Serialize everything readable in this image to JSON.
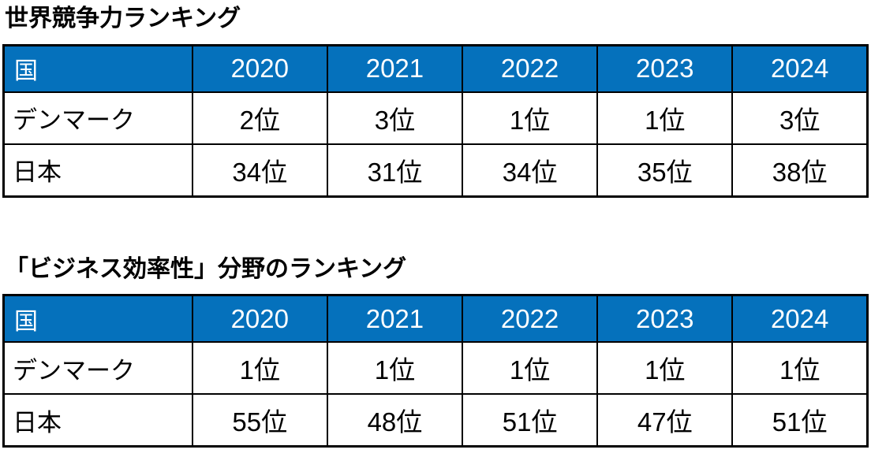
{
  "colors": {
    "header_background": "#0571BC",
    "header_text": "#FFFFFF",
    "border": "#000000",
    "body_text": "#000000",
    "page_background": "#FFFFFF"
  },
  "chart_data": [
    {
      "type": "table",
      "title": "世界競争力ランキング",
      "columns": [
        "国",
        "2020",
        "2021",
        "2022",
        "2023",
        "2024"
      ],
      "rows": [
        {
          "country": "デンマーク",
          "ranks": [
            "2位",
            "3位",
            "1位",
            "1位",
            "3位"
          ]
        },
        {
          "country": "日本",
          "ranks": [
            "34位",
            "31位",
            "34位",
            "35位",
            "38位"
          ]
        }
      ],
      "series": [
        {
          "name": "デンマーク",
          "values": [
            2,
            3,
            1,
            1,
            3
          ]
        },
        {
          "name": "日本",
          "values": [
            34,
            31,
            34,
            35,
            38
          ]
        }
      ],
      "unit": "位"
    },
    {
      "type": "table",
      "title": "「ビジネス効率性」分野のランキング",
      "columns": [
        "国",
        "2020",
        "2021",
        "2022",
        "2023",
        "2024"
      ],
      "rows": [
        {
          "country": "デンマーク",
          "ranks": [
            "1位",
            "1位",
            "1位",
            "1位",
            "1位"
          ]
        },
        {
          "country": "日本",
          "ranks": [
            "55位",
            "48位",
            "51位",
            "47位",
            "51位"
          ]
        }
      ],
      "series": [
        {
          "name": "デンマーク",
          "values": [
            1,
            1,
            1,
            1,
            1
          ]
        },
        {
          "name": "日本",
          "values": [
            55,
            48,
            51,
            47,
            51
          ]
        }
      ],
      "unit": "位"
    }
  ]
}
